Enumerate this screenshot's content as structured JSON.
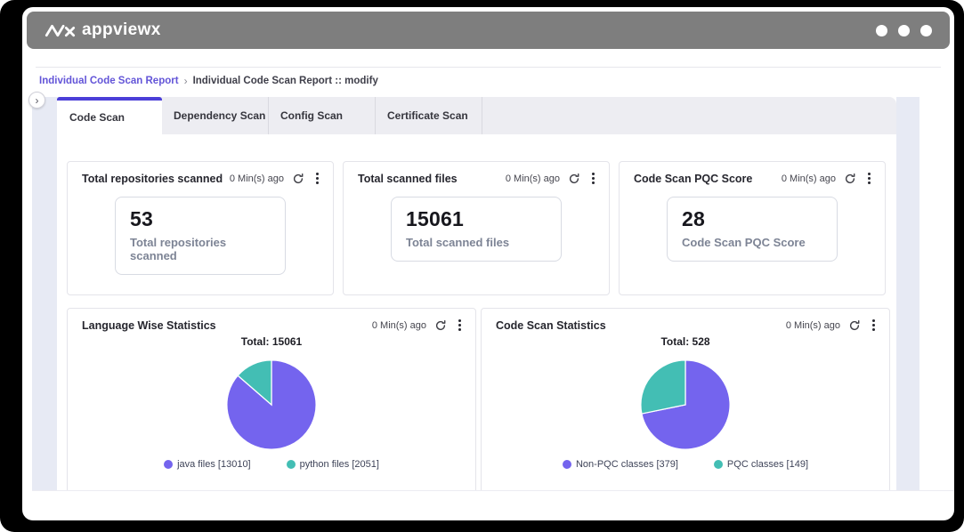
{
  "window": {
    "logo_text": "appviewx"
  },
  "icons": {
    "collapse_chevron": "›",
    "breadcrumb_separator": "›"
  },
  "breadcrumb": {
    "link": "Individual Code Scan Report",
    "current": "Individual Code Scan Report :: modify"
  },
  "tabs": [
    {
      "label": "Code Scan",
      "active": true
    },
    {
      "label": "Dependency Scan",
      "active": false
    },
    {
      "label": "Config Scan",
      "active": false
    },
    {
      "label": "Certificate Scan",
      "active": false
    }
  ],
  "stat_cards": [
    {
      "title": "Total repositories scanned",
      "updated": "0 Min(s) ago",
      "value": "53",
      "label": "Total repositories scanned"
    },
    {
      "title": "Total scanned files",
      "updated": "0 Min(s) ago",
      "value": "15061",
      "label": "Total scanned files"
    },
    {
      "title": "Code Scan PQC Score",
      "updated": "0 Min(s) ago",
      "value": "28",
      "label": "Code Scan PQC Score"
    }
  ],
  "chart_data": [
    {
      "type": "pie",
      "title": "Language Wise Statistics",
      "updated": "0 Min(s) ago",
      "total_label": "Total: 15061",
      "total": 15061,
      "start_angle_deg": -90,
      "direction": "clockwise",
      "legend_position": "bottom",
      "slices": [
        {
          "label": "java files",
          "value": 13010,
          "color": "#7464EE",
          "legend": "java files [13010]"
        },
        {
          "label": "python files",
          "value": 2051,
          "color": "#43BEB4",
          "legend": "python files [2051]"
        }
      ]
    },
    {
      "type": "pie",
      "title": "Code Scan Statistics",
      "updated": "0 Min(s) ago",
      "total_label": "Total: 528",
      "total": 528,
      "start_angle_deg": -90,
      "direction": "clockwise",
      "legend_position": "bottom",
      "slices": [
        {
          "label": "Non-PQC classes",
          "value": 379,
          "color": "#7464EE",
          "legend": "Non-PQC classes [379]"
        },
        {
          "label": "PQC classes",
          "value": 149,
          "color": "#43BEB4",
          "legend": "PQC classes [149]"
        }
      ]
    }
  ],
  "colors": {
    "accent_purple": "#4B3ED8",
    "pie_purple": "#7464EE",
    "pie_teal": "#43BEB4",
    "titlebar_gray": "#7E7E7E",
    "link_purple": "#6355D8"
  }
}
